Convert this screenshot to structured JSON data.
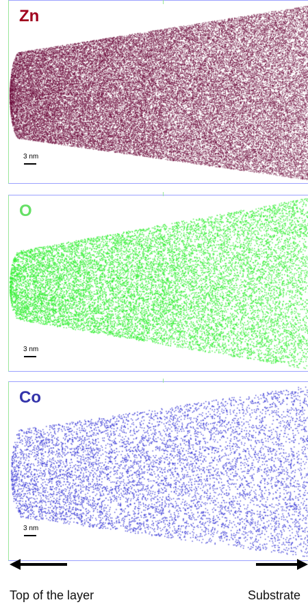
{
  "panels": [
    {
      "id": "zn",
      "label": "Zn",
      "label_color": "#a0001e",
      "dot_color": "#6b0a3a",
      "dot_density": 5.5,
      "scale_label": "3 nm"
    },
    {
      "id": "o",
      "label": "O",
      "label_color": "#66e066",
      "dot_color": "#33ee33",
      "dot_density": 1.6,
      "scale_label": "3 nm"
    },
    {
      "id": "co",
      "label": "Co",
      "label_color": "#3333aa",
      "dot_color": "#3b3bd6",
      "dot_density": 0.8,
      "scale_label": "3 nm"
    }
  ],
  "bottom": {
    "left_caption": "Top of the layer",
    "right_caption": "Substrate",
    "left_arrow_direction": "left",
    "right_arrow_direction": "right",
    "arrow_color": "#000000"
  }
}
